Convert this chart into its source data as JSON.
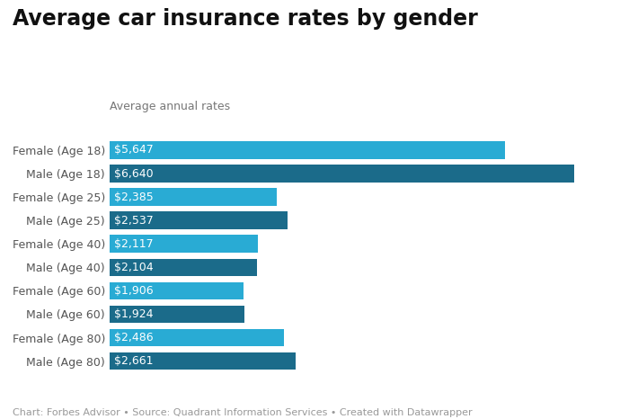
{
  "title": "Average car insurance rates by gender",
  "subtitle": "Average annual rates",
  "categories": [
    "Female (Age 18)",
    "Male (Age 18)",
    "Female (Age 25)",
    "Male (Age 25)",
    "Female (Age 40)",
    "Male (Age 40)",
    "Female (Age 60)",
    "Male (Age 60)",
    "Female (Age 80)",
    "Male (Age 80)"
  ],
  "values": [
    5647,
    6640,
    2385,
    2537,
    2117,
    2104,
    1906,
    1924,
    2486,
    2661
  ],
  "labels": [
    "$5,647",
    "$6,640",
    "$2,385",
    "$2,537",
    "$2,117",
    "$2,104",
    "$1,906",
    "$1,924",
    "$2,486",
    "$2,661"
  ],
  "bar_colors": [
    "#29ABD4",
    "#1B6B8A",
    "#29ABD4",
    "#1B6B8A",
    "#29ABD4",
    "#1B6B8A",
    "#29ABD4",
    "#1B6B8A",
    "#29ABD4",
    "#1B6B8A"
  ],
  "background_color": "#ffffff",
  "xlim": [
    0,
    7200
  ],
  "footnote": "Chart: Forbes Advisor • Source: Quadrant Information Services • Created with Datawrapper",
  "title_fontsize": 17,
  "subtitle_fontsize": 9,
  "label_fontsize": 9,
  "tick_fontsize": 9,
  "footnote_fontsize": 8
}
